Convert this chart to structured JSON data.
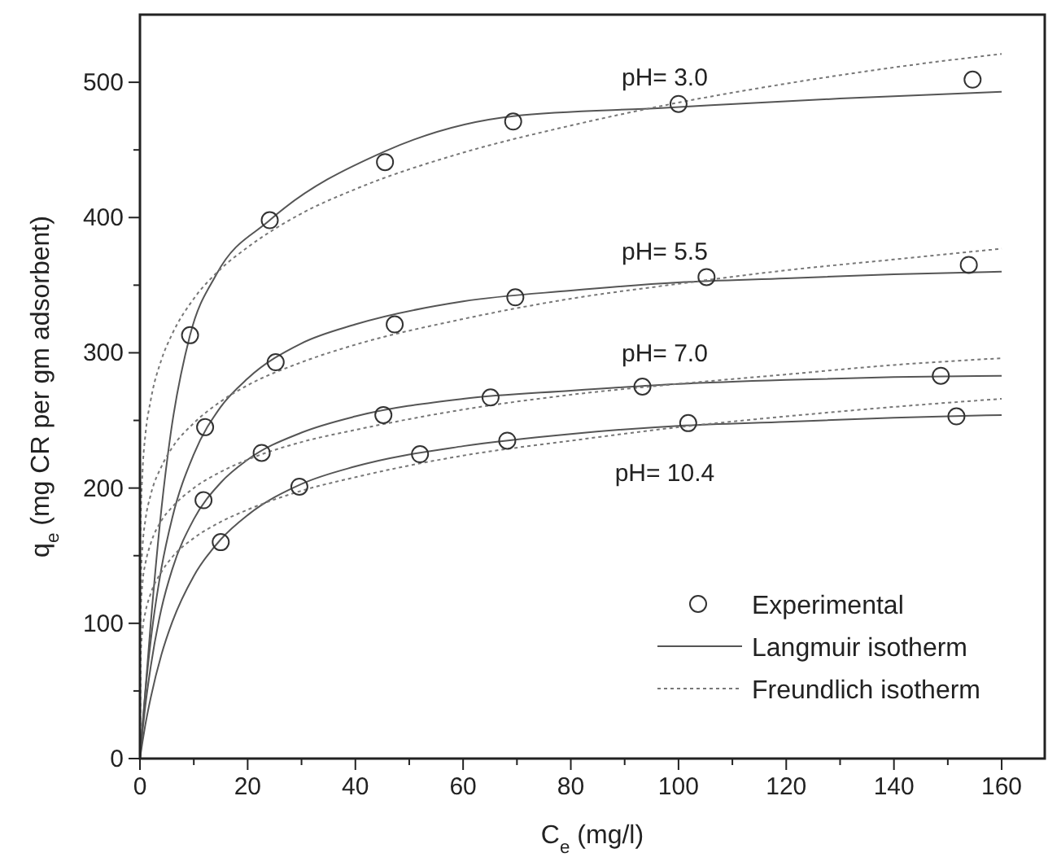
{
  "chart_data": {
    "type": "line",
    "xlabel": "C$_{e}$ (mg/l)",
    "ylabel": "q$_{e}$ (mg CR per gm adsorbent)",
    "xlim": [
      0,
      168
    ],
    "ylim": [
      0,
      550
    ],
    "xticks": [
      0,
      {
        "value": 10,
        "label": null
      },
      20,
      {
        "value": 30,
        "label": null
      },
      40,
      {
        "value": 50,
        "label": null
      },
      60,
      {
        "value": 70,
        "label": null
      },
      80,
      {
        "value": 90,
        "label": null
      },
      100,
      {
        "value": 110,
        "label": null
      },
      120,
      {
        "value": 130,
        "label": null
      },
      140,
      {
        "value": 150,
        "label": null
      },
      160
    ],
    "yticks": [
      0,
      {
        "value": 50,
        "label": null
      },
      100,
      {
        "value": 150,
        "label": null
      },
      200,
      {
        "value": 250,
        "label": null
      },
      300,
      {
        "value": 350,
        "label": null
      },
      400,
      {
        "value": 450,
        "label": null
      },
      500
    ],
    "grid": false,
    "legend": "bottom right",
    "series": [
      {
        "name": "Experimental",
        "type": "scatter",
        "marker": "circle",
        "color": "#333333",
        "x": [
          9.3,
          24.1,
          45.5,
          69.3,
          100,
          154.6,
          12.1,
          25.2,
          47.3,
          69.7,
          105.2,
          153.9,
          11.8,
          22.6,
          45.2,
          65.1,
          93.3,
          148.7,
          15,
          29.6,
          52,
          68.2,
          101.8,
          151.6
        ],
        "values": [
          313,
          398,
          441,
          471,
          484,
          502,
          245,
          293,
          321,
          341,
          356,
          365,
          191,
          226,
          254,
          267,
          275,
          283,
          160,
          201,
          225,
          235,
          248,
          253
        ]
      },
      {
        "name": "Langmuir isotherm",
        "line_style": "solid",
        "color": "#555555",
        "x": [
          0,
          2,
          4,
          5.7,
          9.3,
          14.2,
          24.1,
          45.5,
          69.3,
          96.8,
          130,
          160
        ],
        "values": [
          0,
          100,
          185,
          240,
          313,
          358,
          398,
          449,
          475,
          481,
          488,
          493
        ]
      },
      {
        "line_style": "solid",
        "color": "#555555",
        "x": [
          0,
          0.5,
          1,
          2,
          4,
          6,
          10,
          15,
          20,
          30,
          40,
          60,
          80,
          100,
          120,
          140,
          160
        ],
        "values": [
          0,
          26,
          49,
          87,
          141,
          178,
          225,
          260,
          281,
          307,
          321,
          338,
          346,
          352,
          355,
          358,
          360
        ]
      },
      {
        "line_style": "solid",
        "color": "#555555",
        "x": [
          0,
          0.5,
          1,
          2,
          4,
          6,
          10,
          15,
          20,
          30,
          40,
          60,
          80,
          100,
          120,
          140,
          160
        ],
        "values": [
          0,
          21,
          39,
          68,
          111,
          140,
          177,
          204,
          221,
          241,
          253,
          266,
          272,
          277,
          280,
          282,
          283
        ]
      },
      {
        "line_style": "solid",
        "color": "#555555",
        "x": [
          0,
          0.5,
          1,
          2,
          4,
          6,
          10,
          15,
          20,
          30,
          40,
          60,
          80,
          100,
          120,
          140,
          160
        ],
        "values": [
          0,
          13,
          25,
          45,
          77,
          101,
          135,
          162,
          180,
          203,
          216,
          231,
          240,
          246,
          249,
          252,
          254
        ]
      },
      {
        "name": "Freundlich isotherm",
        "line_style": "dotted",
        "color": "#777777",
        "x": [
          0,
          0.1,
          0.5,
          1,
          2,
          4,
          6,
          10,
          15,
          20,
          30,
          40,
          60,
          80,
          100,
          120,
          140,
          160
        ],
        "values": [
          0,
          167,
          214,
          239,
          265,
          295,
          314,
          340,
          362,
          378,
          403,
          421,
          448,
          468,
          485,
          499,
          511,
          521
        ]
      },
      {
        "line_style": "dotted",
        "color": "#777777",
        "x": [
          0,
          0.1,
          0.5,
          1,
          2,
          4,
          6,
          10,
          15,
          20,
          30,
          40,
          60,
          80,
          100,
          120,
          140,
          160
        ],
        "values": [
          0,
          124,
          158,
          176,
          195,
          216,
          230,
          248,
          264,
          276,
          293,
          306,
          325,
          340,
          351,
          361,
          369,
          377
        ]
      },
      {
        "line_style": "dotted",
        "color": "#777777",
        "x": [
          0,
          0.1,
          0.5,
          1,
          2,
          4,
          6,
          10,
          15,
          20,
          30,
          40,
          60,
          80,
          100,
          120,
          140,
          160
        ],
        "values": [
          0,
          104,
          131,
          144,
          159,
          176,
          186,
          200,
          212,
          221,
          234,
          243,
          258,
          269,
          277,
          284,
          291,
          296
        ]
      },
      {
        "line_style": "dotted",
        "color": "#777777",
        "x": [
          0,
          0.1,
          0.5,
          1,
          2,
          4,
          6,
          10,
          15,
          20,
          30,
          40,
          60,
          80,
          100,
          120,
          140,
          160
        ],
        "values": [
          0,
          72,
          96,
          108,
          122,
          138,
          149,
          163,
          175,
          184,
          198,
          208,
          224,
          235,
          245,
          253,
          260,
          266
        ]
      }
    ],
    "annotations": [
      "pH= 3.0",
      "pH= 5.5",
      "pH= 7.0",
      "pH= 10.4"
    ]
  }
}
